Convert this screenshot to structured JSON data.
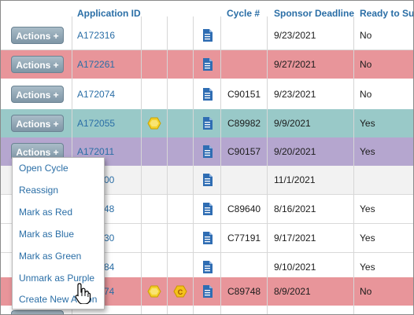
{
  "table": {
    "columns": {
      "application_id": "Application ID",
      "cycle": "Cycle #",
      "sponsor_deadline": "Sponsor Deadline",
      "ready_to_submit": "Ready to Sub"
    },
    "action_button_label": "Actions +",
    "rows": [
      {
        "app_id": "A172316",
        "cycle": "",
        "deadline": "9/23/2021",
        "ready": "No",
        "color": "white"
      },
      {
        "app_id": "A172261",
        "cycle": "",
        "deadline": "9/27/2021",
        "ready": "No",
        "color": "red"
      },
      {
        "app_id": "A172074",
        "cycle": "C90151",
        "deadline": "9/23/2021",
        "ready": "No",
        "color": "white"
      },
      {
        "app_id": "A172055",
        "cycle": "C89982",
        "deadline": "9/9/2021",
        "ready": "Yes",
        "color": "blue"
      },
      {
        "app_id": "A172011",
        "cycle": "C90157",
        "deadline": "9/20/2021",
        "ready": "Yes",
        "color": "purple"
      },
      {
        "app_id": "00",
        "cycle": "",
        "deadline": "11/1/2021",
        "ready": "",
        "color": "grey"
      },
      {
        "app_id": "48",
        "cycle": "C89640",
        "deadline": "8/16/2021",
        "ready": "Yes",
        "color": "white"
      },
      {
        "app_id": "30",
        "cycle": "C77191",
        "deadline": "9/17/2021",
        "ready": "Yes",
        "color": "white"
      },
      {
        "app_id": "84",
        "cycle": "",
        "deadline": "9/10/2021",
        "ready": "Yes",
        "color": "white"
      },
      {
        "app_id": "74",
        "cycle": "C89748",
        "deadline": "8/9/2021",
        "ready": "No",
        "color": "red"
      }
    ]
  },
  "actions_menu": {
    "items": [
      "Open Cycle",
      "Reassign",
      "Mark as Red",
      "Mark as Blue",
      "Mark as Green",
      "Unmark as Purple",
      "Create New Action"
    ]
  },
  "coin_label": "C",
  "colors": {
    "red_row": "#e8959a",
    "blue_row": "#99c9c8",
    "purple_row": "#b5a6cf",
    "link": "#2a6ea6"
  },
  "icons": [
    "document-icon",
    "gold-coin-icon",
    "c-coin-icon",
    "hand-pointer-icon",
    "plus-icon"
  ]
}
